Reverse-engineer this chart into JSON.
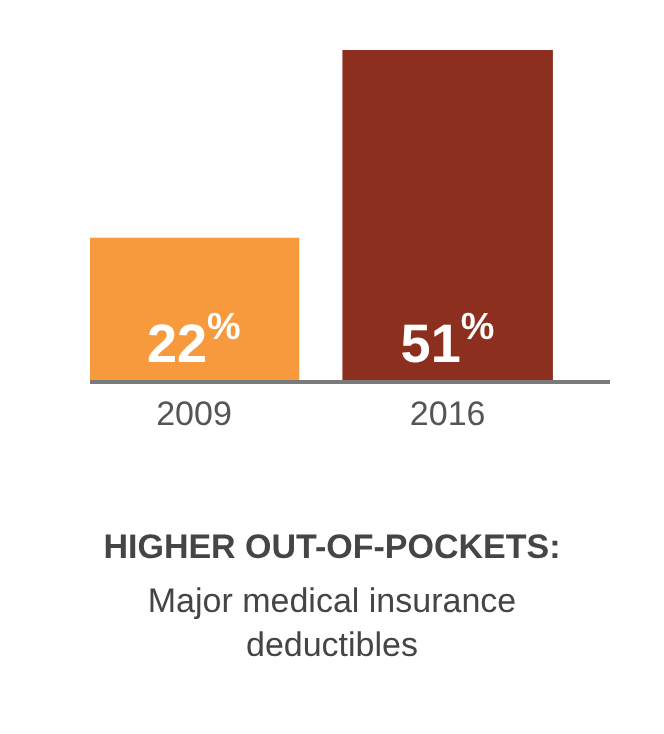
{
  "chart_data": {
    "type": "bar",
    "title": "HIGHER OUT-OF-POCKETS:",
    "subtitle": "Major medical insurance deductibles",
    "categories": [
      "2009",
      "2016"
    ],
    "values": [
      22,
      51
    ],
    "colors": [
      "#f79a3e",
      "#8c2f1e"
    ],
    "value_labels": [
      "22$^{%}$",
      "51$^{%}$"
    ],
    "tick_labels": "x"
  }
}
